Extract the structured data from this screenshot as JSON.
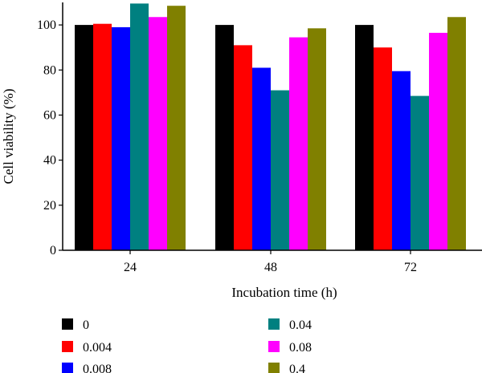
{
  "chart_data": {
    "type": "bar",
    "categories": [
      "24",
      "48",
      "72"
    ],
    "xlabel": "Incubation time (h)",
    "ylabel": "Cell viability (%)",
    "ylim": [
      0,
      110
    ],
    "yticks": [
      0,
      20,
      40,
      60,
      80,
      100
    ],
    "grid": false,
    "legend_position": "bottom",
    "series": [
      {
        "name": "0",
        "color": "#000000",
        "values": [
          100,
          100,
          100
        ]
      },
      {
        "name": "0.004",
        "color": "#ff0000",
        "values": [
          100.5,
          91,
          90
        ]
      },
      {
        "name": "0.008",
        "color": "#0000ff",
        "values": [
          99,
          81,
          79.5
        ]
      },
      {
        "name": "0.04",
        "color": "#008080",
        "values": [
          109.5,
          71,
          68.5
        ]
      },
      {
        "name": "0.08",
        "color": "#ff00ff",
        "values": [
          103.5,
          94.5,
          96.5
        ]
      },
      {
        "name": "0.4",
        "color": "#808000",
        "values": [
          108.5,
          98.5,
          103.5
        ]
      }
    ]
  }
}
